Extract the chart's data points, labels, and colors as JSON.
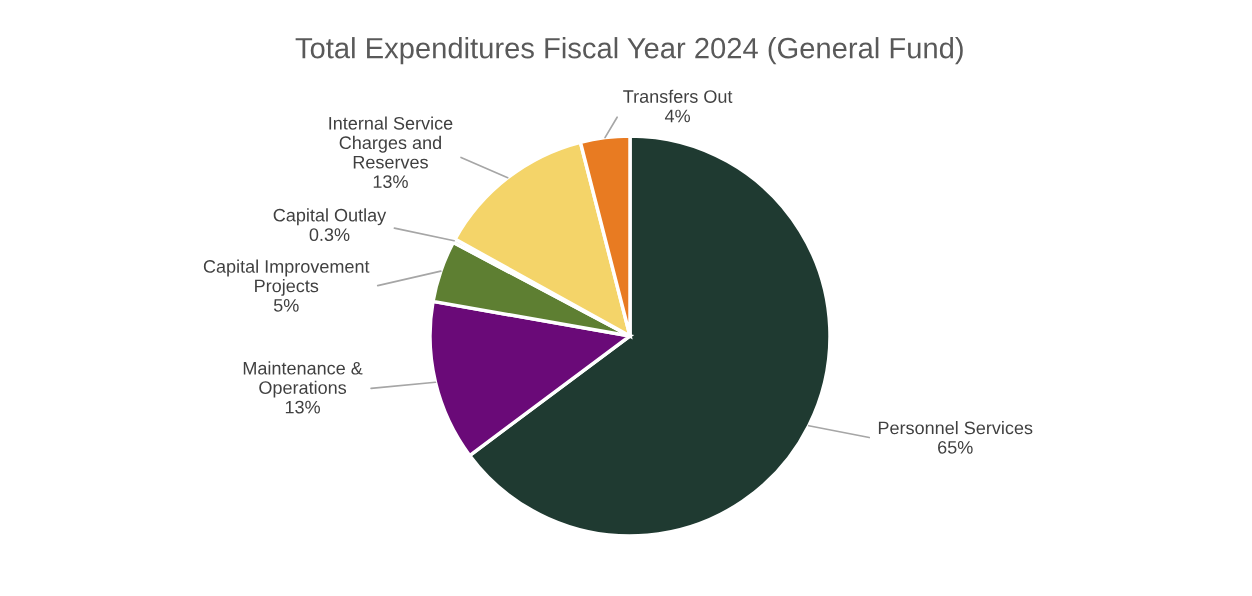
{
  "chart_data": {
    "type": "pie",
    "title": "Total Expenditures Fiscal Year 2024 (General Fund)",
    "categories": [
      "Personnel Services",
      "Maintenance & Operations",
      "Capital Improvement Projects",
      "Capital Outlay",
      "Internal Service Charges and Reserves",
      "Transfers Out"
    ],
    "values": [
      65,
      13,
      5,
      0.3,
      13,
      4
    ],
    "value_labels": [
      "65%",
      "13%",
      "5%",
      "0.3%",
      "13%",
      "4%"
    ],
    "colors": [
      "#1f3a31",
      "#6a0a78",
      "#5e7f32",
      "#a5a5a5",
      "#f4d469",
      "#e87b22"
    ],
    "legend": false
  }
}
